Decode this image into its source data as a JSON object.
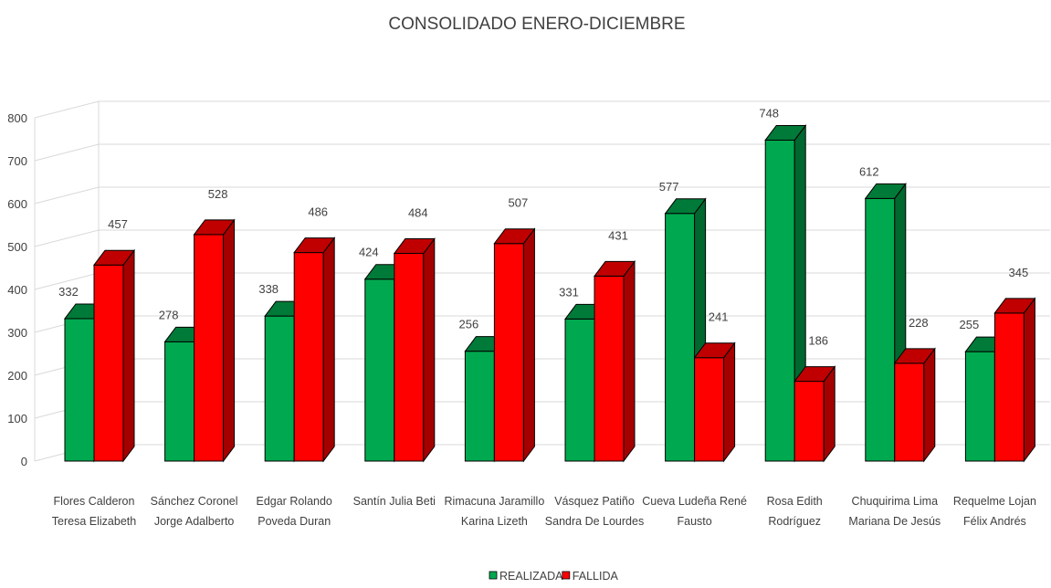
{
  "chart_data": {
    "type": "bar",
    "title": "CONSOLIDADO ENERO-DICIEMBRE",
    "categories": [
      [
        "Flores Calderon",
        "Teresa Elizabeth"
      ],
      [
        "Sánchez Coronel",
        "Jorge Adalberto"
      ],
      [
        "Edgar Rolando",
        "Poveda Duran"
      ],
      [
        "Santín Julia Beti"
      ],
      [
        "Rimacuna Jaramillo",
        "Karina Lizeth"
      ],
      [
        "Vásquez Patiño",
        "Sandra De Lourdes"
      ],
      [
        "Cueva Ludeña René",
        "Fausto"
      ],
      [
        "Rosa Edith",
        "Rodríguez"
      ],
      [
        "Chuquirima Lima",
        "Mariana De Jesús"
      ],
      [
        "Requelme Lojan",
        "Félix Andrés"
      ]
    ],
    "series": [
      {
        "name": "REALIZADA",
        "values": [
          332,
          278,
          338,
          424,
          256,
          331,
          577,
          748,
          612,
          255
        ],
        "color": "#00a94f",
        "dark": "#00672f",
        "top": "#007a38"
      },
      {
        "name": "FALLIDA",
        "values": [
          457,
          528,
          486,
          484,
          507,
          431,
          241,
          186,
          228,
          345
        ],
        "color": "#ff0000",
        "dark": "#a50000",
        "top": "#c00000"
      }
    ],
    "yticks": [
      0,
      100,
      200,
      300,
      400,
      500,
      600,
      700,
      800
    ],
    "ylim": [
      0,
      800
    ],
    "grid": true,
    "legend": "bottom"
  }
}
